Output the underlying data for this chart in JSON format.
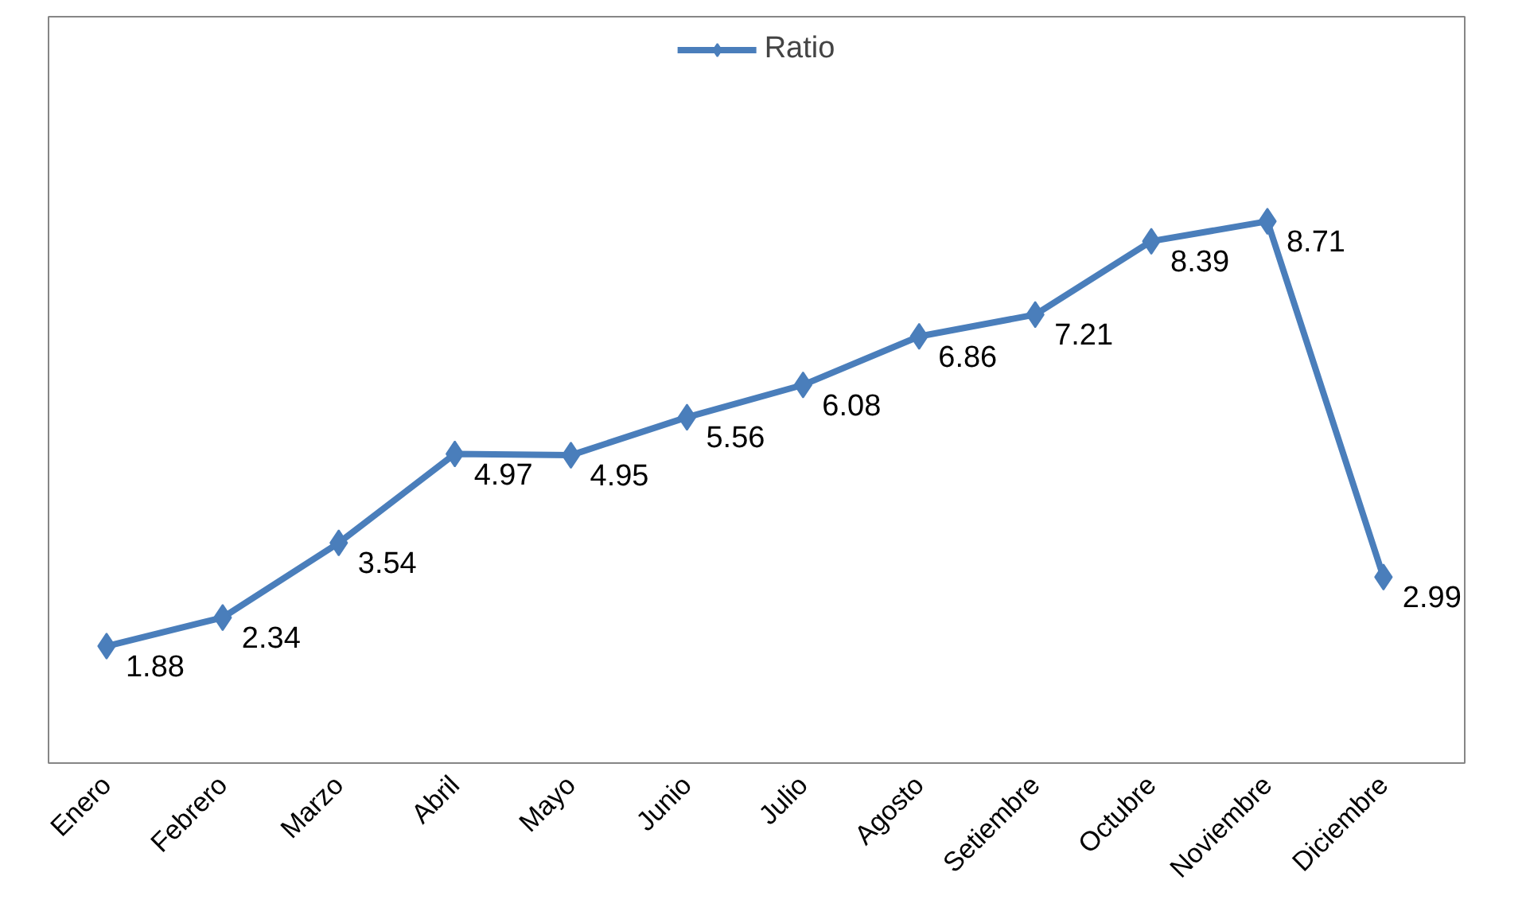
{
  "chart_data": {
    "type": "line",
    "categories": [
      "Enero",
      "Febrero",
      "Marzo",
      "Abril",
      "Mayo",
      "Junio",
      "Julio",
      "Agosto",
      "Setiembre",
      "Octubre",
      "Noviembre",
      "Diciembre"
    ],
    "series": [
      {
        "name": "Ratio",
        "color": "#4a7ebb",
        "values": [
          1.88,
          2.34,
          3.54,
          4.97,
          4.95,
          5.56,
          6.08,
          6.86,
          7.21,
          8.39,
          8.71,
          2.99
        ]
      }
    ],
    "ylim": [
      0,
      12
    ],
    "data_labels": true,
    "marker": "diamond",
    "line_style": "solid",
    "legend": "top",
    "grid": false
  }
}
